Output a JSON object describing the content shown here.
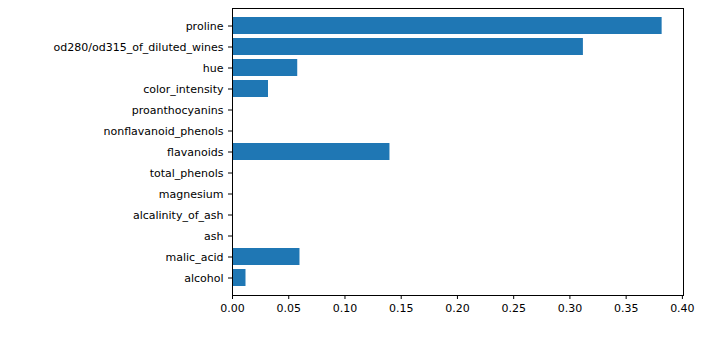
{
  "chart_data": {
    "type": "bar",
    "orientation": "horizontal",
    "categories": [
      "proline",
      "od280/od315_of_diluted_wines",
      "hue",
      "color_intensity",
      "proanthocyanins",
      "nonflavanoid_phenols",
      "flavanoids",
      "total_phenols",
      "magnesium",
      "alcalinity_of_ash",
      "ash",
      "malic_acid",
      "alcohol"
    ],
    "values": [
      0.382,
      0.312,
      0.058,
      0.032,
      0,
      0,
      0.14,
      0,
      0,
      0,
      0,
      0.06,
      0.012
    ],
    "color": "#1f77b4",
    "xlim": [
      0,
      0.401
    ],
    "xticks": [
      {
        "value": 0,
        "label": "0.00"
      },
      {
        "value": 0.05,
        "label": "0.05"
      },
      {
        "value": 0.1,
        "label": "0.10"
      },
      {
        "value": 0.15,
        "label": "0.15"
      },
      {
        "value": 0.2,
        "label": "0.20"
      },
      {
        "value": 0.25,
        "label": "0.25"
      },
      {
        "value": 0.3,
        "label": "0.30"
      },
      {
        "value": 0.35,
        "label": "0.35"
      },
      {
        "value": 0.4,
        "label": "0.40"
      }
    ],
    "grid": false
  }
}
